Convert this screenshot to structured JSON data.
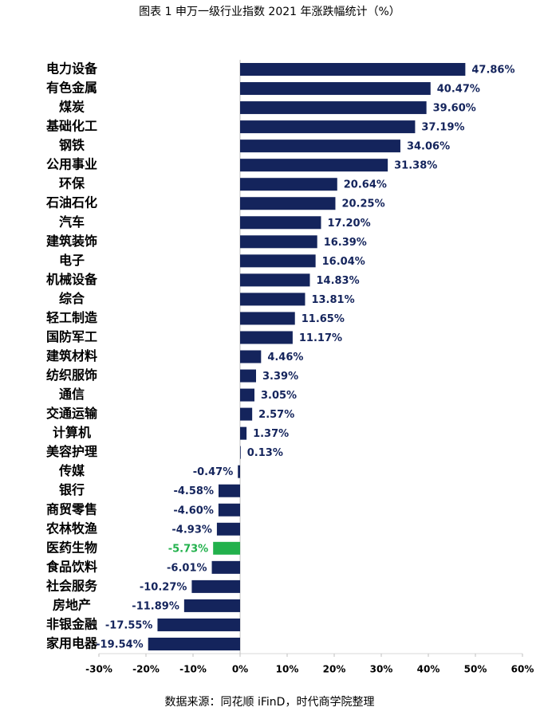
{
  "chart_data": {
    "type": "bar",
    "orientation": "horizontal",
    "title": "图表 1 申万一级行业指数 2021 年涨跌幅统计（%）",
    "source": "数据来源：同花顺 iFinD，时代商学院整理",
    "categories": [
      "电力设备",
      "有色金属",
      "煤炭",
      "基础化工",
      "钢铁",
      "公用事业",
      "环保",
      "石油石化",
      "汽车",
      "建筑装饰",
      "电子",
      "机械设备",
      "综合",
      "轻工制造",
      "国防军工",
      "建筑材料",
      "纺织服饰",
      "通信",
      "交通运输",
      "计算机",
      "美容护理",
      "传媒",
      "银行",
      "商贸零售",
      "农林牧渔",
      "医药生物",
      "食品饮料",
      "社会服务",
      "房地产",
      "非银金融",
      "家用电器"
    ],
    "values": [
      47.86,
      40.47,
      39.6,
      37.19,
      34.06,
      31.38,
      20.64,
      20.25,
      17.2,
      16.39,
      16.04,
      14.83,
      13.81,
      11.65,
      11.17,
      4.46,
      3.39,
      3.05,
      2.57,
      1.37,
      0.13,
      -0.47,
      -4.58,
      -4.6,
      -4.93,
      -5.73,
      -6.01,
      -10.27,
      -11.89,
      -17.55,
      -19.54
    ],
    "value_labels": [
      "47.86%",
      "40.47%",
      "39.60%",
      "37.19%",
      "34.06%",
      "31.38%",
      "20.64%",
      "20.25%",
      "17.20%",
      "16.39%",
      "16.04%",
      "14.83%",
      "13.81%",
      "11.65%",
      "11.17%",
      "4.46%",
      "3.39%",
      "3.05%",
      "2.57%",
      "1.37%",
      "0.13%",
      "-0.47%",
      "-4.58%",
      "-4.60%",
      "-4.93%",
      "-5.73%",
      "-6.01%",
      "-10.27%",
      "-11.89%",
      "-17.55%",
      "-19.54%"
    ],
    "colors": [
      "#14245c",
      "#14245c",
      "#14245c",
      "#14245c",
      "#14245c",
      "#14245c",
      "#14245c",
      "#14245c",
      "#14245c",
      "#14245c",
      "#14245c",
      "#14245c",
      "#14245c",
      "#14245c",
      "#14245c",
      "#14245c",
      "#14245c",
      "#14245c",
      "#14245c",
      "#14245c",
      "#14245c",
      "#14245c",
      "#14245c",
      "#14245c",
      "#14245c",
      "#22b14c",
      "#14245c",
      "#14245c",
      "#14245c",
      "#14245c",
      "#14245c"
    ],
    "xlim": [
      -30,
      60
    ],
    "xticks": [
      {
        "value": -30,
        "label": "-30%"
      },
      {
        "value": -20,
        "label": "-20%"
      },
      {
        "value": -10,
        "label": "-10%"
      },
      {
        "value": 0,
        "label": "0%"
      },
      {
        "value": 10,
        "label": "10%"
      },
      {
        "value": 20,
        "label": "20%"
      },
      {
        "value": 30,
        "label": "30%"
      },
      {
        "value": 40,
        "label": "40%"
      },
      {
        "value": 50,
        "label": "50%"
      },
      {
        "value": 60,
        "label": "60%"
      }
    ]
  }
}
